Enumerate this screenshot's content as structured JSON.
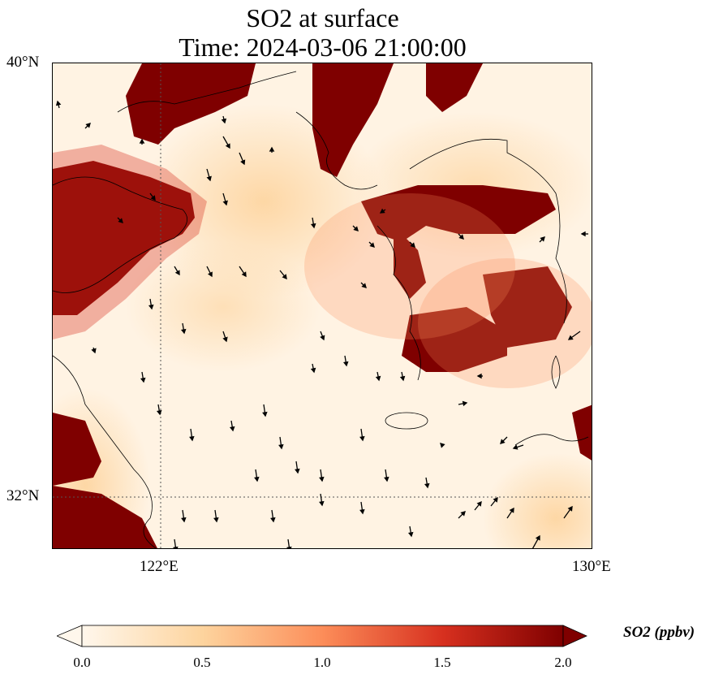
{
  "title": {
    "line1": "SO2 at surface",
    "line2": "Time: 2024-03-06 21:00:00"
  },
  "axes": {
    "lat_labels": [
      "40°N",
      "32°N"
    ],
    "lon_labels": [
      "122°E",
      "130°E"
    ]
  },
  "colorbar": {
    "label": "SO2 (ppbv)",
    "ticks": [
      "0.0",
      "0.5",
      "1.0",
      "1.5",
      "2.0"
    ],
    "range": [
      0.0,
      2.0
    ],
    "colormap": "OrRd",
    "extend": "both",
    "colors": [
      "#fff7ec",
      "#fdd49e",
      "#fc8d59",
      "#d7301f",
      "#7f0000"
    ]
  },
  "map": {
    "lon_range": [
      120.0,
      130.0
    ],
    "lat_range": [
      31.0,
      40.0
    ],
    "gridlines": "dotted at 122°E and 32°N",
    "field": "SO2 concentration with surface wind vectors"
  }
}
